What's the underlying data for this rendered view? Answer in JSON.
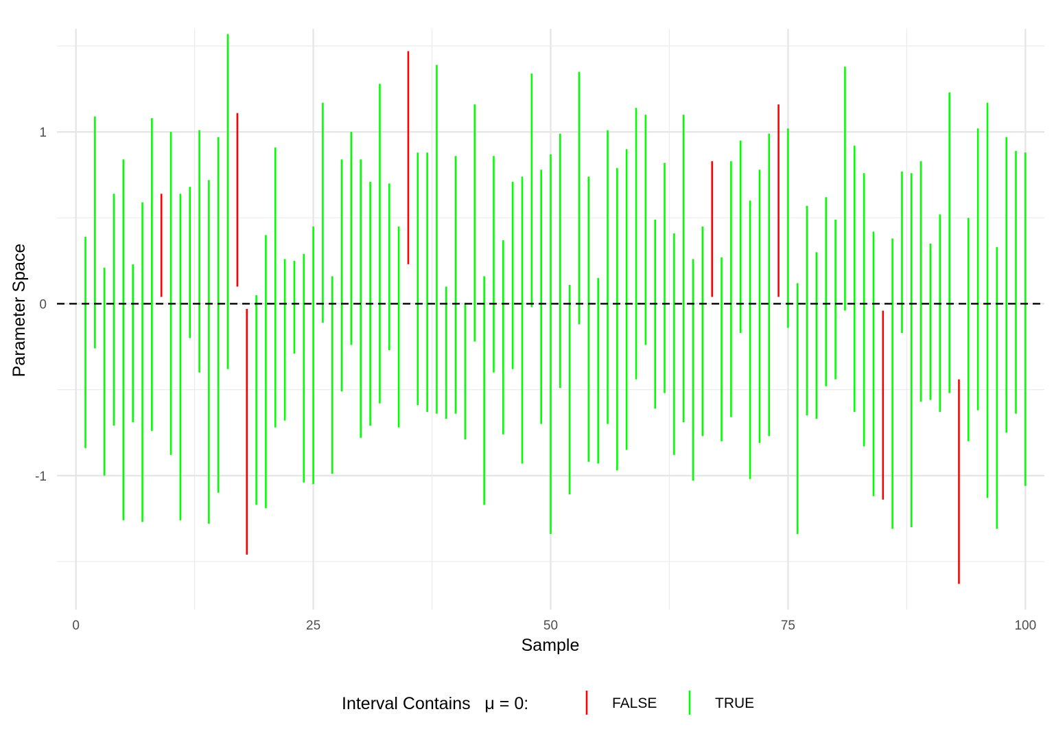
{
  "chart_data": {
    "type": "errorbar",
    "xlabel": "Sample",
    "ylabel": "Parameter Space",
    "xlim": [
      -2,
      102
    ],
    "ylim": [
      -1.78,
      1.6
    ],
    "x_ticks": [
      0,
      25,
      50,
      75,
      100
    ],
    "x_tick_labels": [
      "0",
      "25",
      "50",
      "75",
      "100"
    ],
    "y_ticks": [
      -1,
      0,
      1
    ],
    "y_tick_labels": [
      "-1",
      "0",
      "1"
    ],
    "grid": true,
    "reference_line": {
      "y": 0,
      "style": "dashed",
      "color": "#000000"
    },
    "legend": {
      "title": "Interval Contains   μ = 0:",
      "position": "bottom",
      "entries": [
        {
          "label": "FALSE",
          "color": "#ff0000"
        },
        {
          "label": "TRUE",
          "color": "#00ff00"
        }
      ]
    },
    "intervals": [
      {
        "x": 1,
        "lower": -0.84,
        "upper": 0.39,
        "contains": true
      },
      {
        "x": 2,
        "lower": -0.26,
        "upper": 1.09,
        "contains": true
      },
      {
        "x": 3,
        "lower": -1.0,
        "upper": 0.21,
        "contains": true
      },
      {
        "x": 4,
        "lower": -0.71,
        "upper": 0.64,
        "contains": true
      },
      {
        "x": 5,
        "lower": -1.26,
        "upper": 0.84,
        "contains": true
      },
      {
        "x": 6,
        "lower": -0.69,
        "upper": 0.23,
        "contains": true
      },
      {
        "x": 7,
        "lower": -1.27,
        "upper": 0.59,
        "contains": true
      },
      {
        "x": 8,
        "lower": -0.74,
        "upper": 1.08,
        "contains": true
      },
      {
        "x": 9,
        "lower": 0.04,
        "upper": 0.64,
        "contains": false
      },
      {
        "x": 10,
        "lower": -0.88,
        "upper": 1.0,
        "contains": true
      },
      {
        "x": 11,
        "lower": -1.26,
        "upper": 0.64,
        "contains": true
      },
      {
        "x": 12,
        "lower": -0.2,
        "upper": 0.68,
        "contains": true
      },
      {
        "x": 13,
        "lower": -0.4,
        "upper": 1.01,
        "contains": true
      },
      {
        "x": 14,
        "lower": -1.28,
        "upper": 0.72,
        "contains": true
      },
      {
        "x": 15,
        "lower": -1.1,
        "upper": 0.97,
        "contains": true
      },
      {
        "x": 16,
        "lower": -0.38,
        "upper": 1.57,
        "contains": true
      },
      {
        "x": 17,
        "lower": 0.1,
        "upper": 1.11,
        "contains": false
      },
      {
        "x": 18,
        "lower": -1.46,
        "upper": -0.03,
        "contains": false
      },
      {
        "x": 19,
        "lower": -1.17,
        "upper": 0.05,
        "contains": true
      },
      {
        "x": 20,
        "lower": -1.19,
        "upper": 0.4,
        "contains": true
      },
      {
        "x": 21,
        "lower": -0.72,
        "upper": 0.91,
        "contains": true
      },
      {
        "x": 22,
        "lower": -0.68,
        "upper": 0.26,
        "contains": true
      },
      {
        "x": 23,
        "lower": -0.29,
        "upper": 0.25,
        "contains": true
      },
      {
        "x": 24,
        "lower": -1.04,
        "upper": 0.29,
        "contains": true
      },
      {
        "x": 25,
        "lower": -1.05,
        "upper": 0.45,
        "contains": true
      },
      {
        "x": 26,
        "lower": -0.11,
        "upper": 1.17,
        "contains": true
      },
      {
        "x": 27,
        "lower": -0.99,
        "upper": 0.16,
        "contains": true
      },
      {
        "x": 28,
        "lower": -0.51,
        "upper": 0.84,
        "contains": true
      },
      {
        "x": 29,
        "lower": -0.24,
        "upper": 1.0,
        "contains": true
      },
      {
        "x": 30,
        "lower": -0.78,
        "upper": 0.84,
        "contains": true
      },
      {
        "x": 31,
        "lower": -0.71,
        "upper": 0.71,
        "contains": true
      },
      {
        "x": 32,
        "lower": -0.58,
        "upper": 1.28,
        "contains": true
      },
      {
        "x": 33,
        "lower": -0.27,
        "upper": 0.7,
        "contains": true
      },
      {
        "x": 34,
        "lower": -0.72,
        "upper": 0.45,
        "contains": true
      },
      {
        "x": 35,
        "lower": 0.23,
        "upper": 1.47,
        "contains": false
      },
      {
        "x": 36,
        "lower": -0.59,
        "upper": 0.88,
        "contains": true
      },
      {
        "x": 37,
        "lower": -0.63,
        "upper": 0.88,
        "contains": true
      },
      {
        "x": 38,
        "lower": -0.64,
        "upper": 1.39,
        "contains": true
      },
      {
        "x": 39,
        "lower": -0.67,
        "upper": 0.1,
        "contains": true
      },
      {
        "x": 40,
        "lower": -0.64,
        "upper": 0.86,
        "contains": true
      },
      {
        "x": 41,
        "lower": -0.79,
        "upper": 0.0,
        "contains": true
      },
      {
        "x": 42,
        "lower": -0.22,
        "upper": 1.16,
        "contains": true
      },
      {
        "x": 43,
        "lower": -1.17,
        "upper": 0.16,
        "contains": true
      },
      {
        "x": 44,
        "lower": -0.4,
        "upper": 0.86,
        "contains": true
      },
      {
        "x": 45,
        "lower": -0.76,
        "upper": 0.37,
        "contains": true
      },
      {
        "x": 46,
        "lower": -0.38,
        "upper": 0.71,
        "contains": true
      },
      {
        "x": 47,
        "lower": -0.93,
        "upper": 0.74,
        "contains": true
      },
      {
        "x": 48,
        "lower": -0.02,
        "upper": 1.34,
        "contains": true
      },
      {
        "x": 49,
        "lower": -0.7,
        "upper": 0.78,
        "contains": true
      },
      {
        "x": 50,
        "lower": -1.34,
        "upper": 0.87,
        "contains": true
      },
      {
        "x": 51,
        "lower": -0.49,
        "upper": 0.99,
        "contains": true
      },
      {
        "x": 52,
        "lower": -1.11,
        "upper": 0.11,
        "contains": true
      },
      {
        "x": 53,
        "lower": -0.12,
        "upper": 1.35,
        "contains": true
      },
      {
        "x": 54,
        "lower": -0.92,
        "upper": 0.74,
        "contains": true
      },
      {
        "x": 55,
        "lower": -0.93,
        "upper": 0.15,
        "contains": true
      },
      {
        "x": 56,
        "lower": -0.7,
        "upper": 1.01,
        "contains": true
      },
      {
        "x": 57,
        "lower": -0.97,
        "upper": 0.79,
        "contains": true
      },
      {
        "x": 58,
        "lower": -0.85,
        "upper": 0.9,
        "contains": true
      },
      {
        "x": 59,
        "lower": -0.44,
        "upper": 1.14,
        "contains": true
      },
      {
        "x": 60,
        "lower": -0.24,
        "upper": 1.1,
        "contains": true
      },
      {
        "x": 61,
        "lower": -0.61,
        "upper": 0.49,
        "contains": true
      },
      {
        "x": 62,
        "lower": -0.52,
        "upper": 0.82,
        "contains": true
      },
      {
        "x": 63,
        "lower": -0.88,
        "upper": 0.41,
        "contains": true
      },
      {
        "x": 64,
        "lower": -0.69,
        "upper": 1.1,
        "contains": true
      },
      {
        "x": 65,
        "lower": -1.03,
        "upper": 0.26,
        "contains": true
      },
      {
        "x": 66,
        "lower": -0.77,
        "upper": 0.45,
        "contains": true
      },
      {
        "x": 67,
        "lower": 0.04,
        "upper": 0.83,
        "contains": false
      },
      {
        "x": 68,
        "lower": -0.8,
        "upper": 0.27,
        "contains": true
      },
      {
        "x": 69,
        "lower": -0.66,
        "upper": 0.83,
        "contains": true
      },
      {
        "x": 70,
        "lower": -0.17,
        "upper": 0.95,
        "contains": true
      },
      {
        "x": 71,
        "lower": -1.02,
        "upper": 0.6,
        "contains": true
      },
      {
        "x": 72,
        "lower": -0.81,
        "upper": 0.78,
        "contains": true
      },
      {
        "x": 73,
        "lower": -0.77,
        "upper": 0.99,
        "contains": true
      },
      {
        "x": 74,
        "lower": 0.04,
        "upper": 1.16,
        "contains": false
      },
      {
        "x": 75,
        "lower": -0.14,
        "upper": 1.02,
        "contains": true
      },
      {
        "x": 76,
        "lower": -1.34,
        "upper": 0.12,
        "contains": true
      },
      {
        "x": 77,
        "lower": -0.65,
        "upper": 0.57,
        "contains": true
      },
      {
        "x": 78,
        "lower": -0.67,
        "upper": 0.3,
        "contains": true
      },
      {
        "x": 79,
        "lower": -0.48,
        "upper": 0.62,
        "contains": true
      },
      {
        "x": 80,
        "lower": -0.44,
        "upper": 0.49,
        "contains": true
      },
      {
        "x": 81,
        "lower": -0.04,
        "upper": 1.38,
        "contains": true
      },
      {
        "x": 82,
        "lower": -0.63,
        "upper": 0.92,
        "contains": true
      },
      {
        "x": 83,
        "lower": -0.83,
        "upper": 0.76,
        "contains": true
      },
      {
        "x": 84,
        "lower": -1.12,
        "upper": 0.42,
        "contains": true
      },
      {
        "x": 85,
        "lower": -1.14,
        "upper": -0.04,
        "contains": false
      },
      {
        "x": 86,
        "lower": -1.31,
        "upper": 0.38,
        "contains": true
      },
      {
        "x": 87,
        "lower": -0.17,
        "upper": 0.77,
        "contains": true
      },
      {
        "x": 88,
        "lower": -1.3,
        "upper": 0.76,
        "contains": true
      },
      {
        "x": 89,
        "lower": -0.57,
        "upper": 0.83,
        "contains": true
      },
      {
        "x": 90,
        "lower": -0.56,
        "upper": 0.35,
        "contains": true
      },
      {
        "x": 91,
        "lower": -0.63,
        "upper": 0.52,
        "contains": true
      },
      {
        "x": 92,
        "lower": -0.52,
        "upper": 1.23,
        "contains": true
      },
      {
        "x": 93,
        "lower": -1.63,
        "upper": -0.44,
        "contains": false
      },
      {
        "x": 94,
        "lower": -0.8,
        "upper": 0.5,
        "contains": true
      },
      {
        "x": 95,
        "lower": -0.62,
        "upper": 1.02,
        "contains": true
      },
      {
        "x": 96,
        "lower": -1.13,
        "upper": 1.17,
        "contains": true
      },
      {
        "x": 97,
        "lower": -1.31,
        "upper": 0.33,
        "contains": true
      },
      {
        "x": 98,
        "lower": -0.75,
        "upper": 0.97,
        "contains": true
      },
      {
        "x": 99,
        "lower": -0.64,
        "upper": 0.89,
        "contains": true
      },
      {
        "x": 100,
        "lower": -1.06,
        "upper": 0.88,
        "contains": true
      }
    ]
  }
}
